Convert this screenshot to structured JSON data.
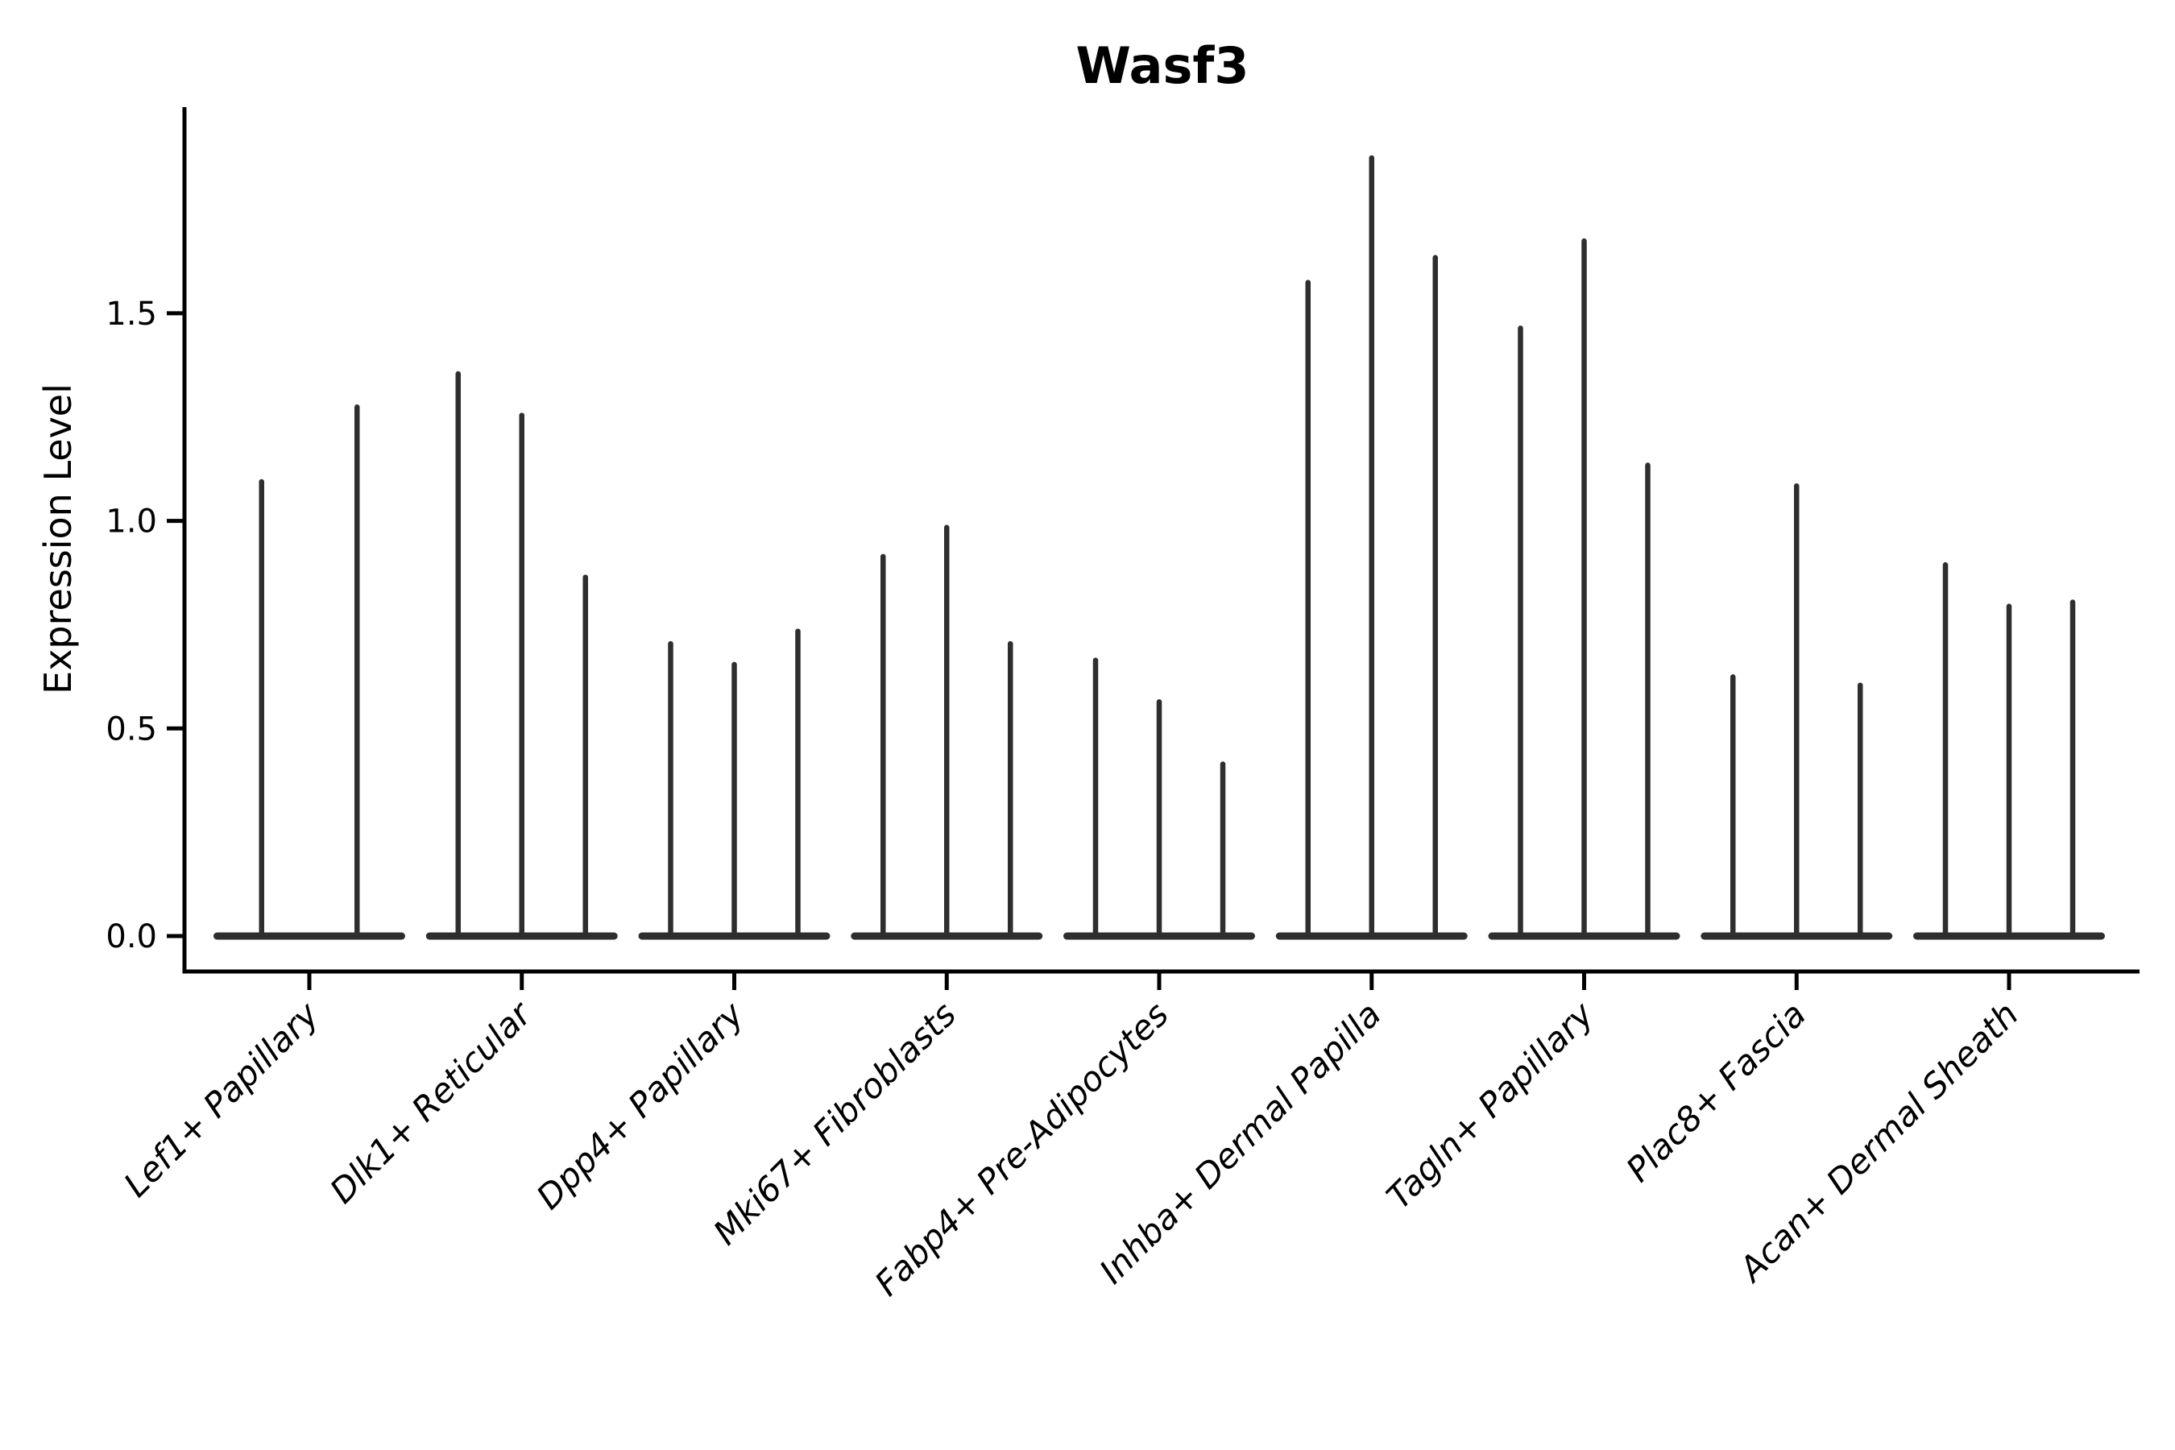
{
  "chart_data": {
    "type": "violin",
    "title": "Wasf3",
    "ylabel": "Expression Level",
    "xlabel": "",
    "grid": false,
    "legend": null,
    "ylim": [
      -0.08,
      2.0
    ],
    "yticks": [
      0.0,
      0.5,
      1.0,
      1.5
    ],
    "ytick_labels": [
      "0.0",
      "0.5",
      "1.0",
      "1.5"
    ],
    "categories": [
      "Lef1+ Papillary",
      "Dlk1+ Reticular",
      "Dpp4+ Papillary",
      "Mki67+ Fibroblasts",
      "Fabp4+ Pre-Adipocytes",
      "Inhba+ Dermal Papilla",
      "Tagln+ Papillary",
      "Plac8+ Fascia",
      "Acan+ Dermal Sheath"
    ],
    "series": [
      {
        "category": "Lef1+ Papillary",
        "violin_peaks": [
          1.1,
          1.28
        ]
      },
      {
        "category": "Dlk1+ Reticular",
        "violin_peaks": [
          1.36,
          1.26,
          0.87
        ]
      },
      {
        "category": "Dpp4+ Papillary",
        "violin_peaks": [
          0.71,
          0.66,
          0.74
        ]
      },
      {
        "category": "Mki67+ Fibroblasts",
        "violin_peaks": [
          0.92,
          0.99,
          0.71
        ]
      },
      {
        "category": "Fabp4+ Pre-Adipocytes",
        "violin_peaks": [
          0.67,
          0.57,
          0.42
        ]
      },
      {
        "category": "Inhba+ Dermal Papilla",
        "violin_peaks": [
          1.58,
          1.88,
          1.64
        ]
      },
      {
        "category": "Tagln+ Papillary",
        "violin_peaks": [
          1.47,
          1.68,
          1.14
        ]
      },
      {
        "category": "Plac8+ Fascia",
        "violin_peaks": [
          0.63,
          1.09,
          0.61
        ]
      },
      {
        "category": "Acan+ Dermal Sheath",
        "violin_peaks": [
          0.9,
          0.8,
          0.81
        ]
      }
    ],
    "colors": {
      "violin": "#2e2e2e",
      "axis": "#000000",
      "background": "#ffffff"
    }
  }
}
